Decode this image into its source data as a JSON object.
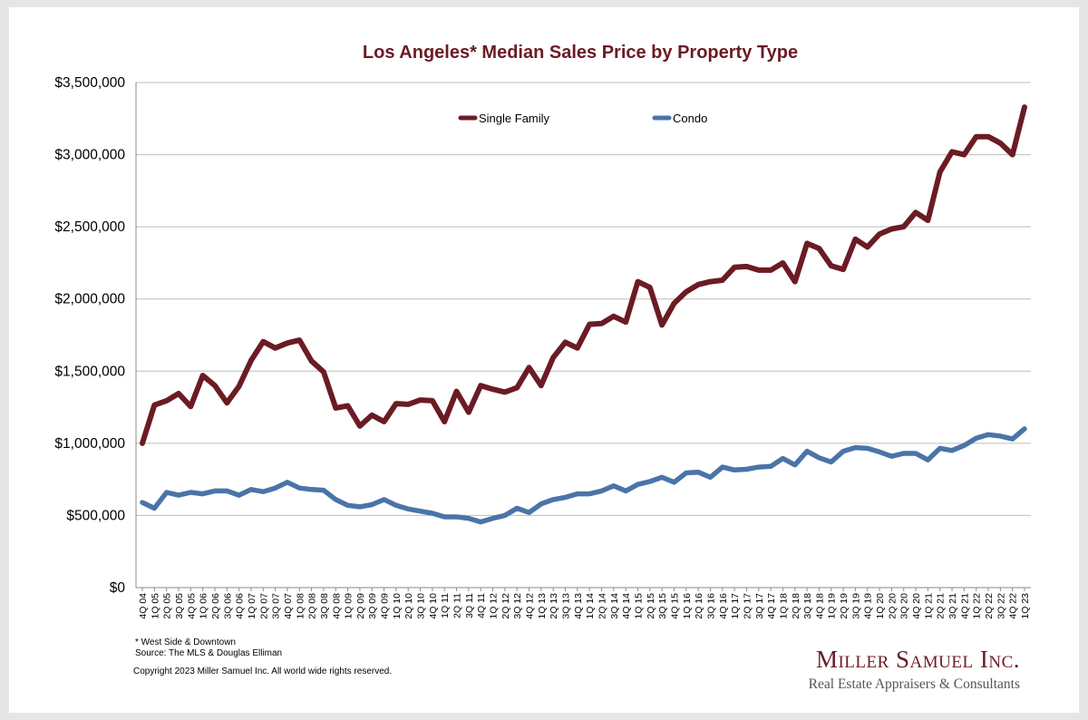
{
  "chart_data": {
    "type": "line",
    "title": "Los Angeles* Median Sales Price by Property Type",
    "xlabel": "",
    "ylabel": "",
    "ylim": [
      0,
      3500000
    ],
    "yticks": [
      "$0",
      "$500,000",
      "$1,000,000",
      "$1,500,000",
      "$2,000,000",
      "$2,500,000",
      "$3,000,000",
      "$3,500,000"
    ],
    "grid": "horizontal",
    "legend_position": "top",
    "categories": [
      "4Q 04",
      "1Q 05",
      "2Q 05",
      "3Q 05",
      "4Q 05",
      "1Q 06",
      "2Q 06",
      "3Q 06",
      "4Q 06",
      "1Q 07",
      "2Q 07",
      "3Q 07",
      "4Q 07",
      "1Q 08",
      "2Q 08",
      "3Q 08",
      "4Q 08",
      "1Q 09",
      "2Q 09",
      "3Q 09",
      "4Q 09",
      "1Q 10",
      "2Q 10",
      "3Q 10",
      "4Q 10",
      "1Q 11",
      "2Q 11",
      "3Q 11",
      "4Q 11",
      "1Q 12",
      "2Q 12",
      "3Q 12",
      "4Q 12",
      "1Q 13",
      "2Q 13",
      "3Q 13",
      "4Q 13",
      "1Q 14",
      "2Q 14",
      "3Q 14",
      "4Q 14",
      "1Q 15",
      "2Q 15",
      "3Q 15",
      "4Q 15",
      "1Q 16",
      "2Q 16",
      "3Q 16",
      "4Q 16",
      "1Q 17",
      "2Q 17",
      "3Q 17",
      "4Q 17",
      "1Q 18",
      "2Q 18",
      "3Q 18",
      "4Q 18",
      "1Q 19",
      "2Q 19",
      "3Q 19",
      "4Q 19",
      "1Q 20",
      "2Q 20",
      "3Q 20",
      "4Q 20",
      "1Q 21",
      "2Q 21",
      "3Q 21",
      "4Q 21",
      "1Q 22",
      "2Q 22",
      "3Q 22",
      "4Q 22",
      "1Q 23"
    ],
    "series": [
      {
        "name": "Single Family",
        "color": "#6b1b24",
        "values": [
          1000000,
          1265000,
          1295000,
          1345000,
          1255000,
          1470000,
          1400000,
          1280000,
          1395000,
          1575000,
          1705000,
          1660000,
          1695000,
          1715000,
          1570000,
          1495000,
          1245000,
          1260000,
          1120000,
          1195000,
          1150000,
          1275000,
          1270000,
          1300000,
          1295000,
          1150000,
          1360000,
          1215000,
          1400000,
          1375000,
          1355000,
          1385000,
          1525000,
          1400000,
          1595000,
          1700000,
          1660000,
          1825000,
          1830000,
          1880000,
          1840000,
          2120000,
          2080000,
          1820000,
          1970000,
          2050000,
          2100000,
          2120000,
          2130000,
          2220000,
          2225000,
          2200000,
          2200000,
          2250000,
          2120000,
          2385000,
          2350000,
          2230000,
          2205000,
          2415000,
          2360000,
          2450000,
          2485000,
          2500000,
          2600000,
          2545000,
          2880000,
          3020000,
          3000000,
          3125000,
          3125000,
          3080000,
          3000000,
          3330000
        ]
      },
      {
        "name": "Condo",
        "color": "#4a74a8",
        "values": [
          590000,
          550000,
          660000,
          640000,
          660000,
          650000,
          670000,
          670000,
          640000,
          680000,
          665000,
          690000,
          730000,
          690000,
          680000,
          675000,
          610000,
          570000,
          560000,
          575000,
          610000,
          570000,
          545000,
          530000,
          515000,
          490000,
          490000,
          480000,
          455000,
          480000,
          500000,
          550000,
          520000,
          580000,
          610000,
          625000,
          650000,
          650000,
          670000,
          705000,
          670000,
          715000,
          735000,
          765000,
          730000,
          795000,
          800000,
          765000,
          835000,
          815000,
          820000,
          835000,
          840000,
          895000,
          850000,
          945000,
          900000,
          870000,
          945000,
          970000,
          965000,
          940000,
          910000,
          930000,
          930000,
          885000,
          965000,
          950000,
          985000,
          1035000,
          1060000,
          1050000,
          1030000,
          1100000
        ]
      }
    ]
  },
  "footnotes": {
    "note": "* West Side & Downtown",
    "source": "Source: The MLS & Douglas Elliman",
    "copyright": "Copyright 2023 Miller Samuel Inc.  All world wide rights reserved."
  },
  "brand": {
    "name": "Miller Samuel Inc.",
    "tagline": "Real Estate Appraisers & Consultants"
  }
}
